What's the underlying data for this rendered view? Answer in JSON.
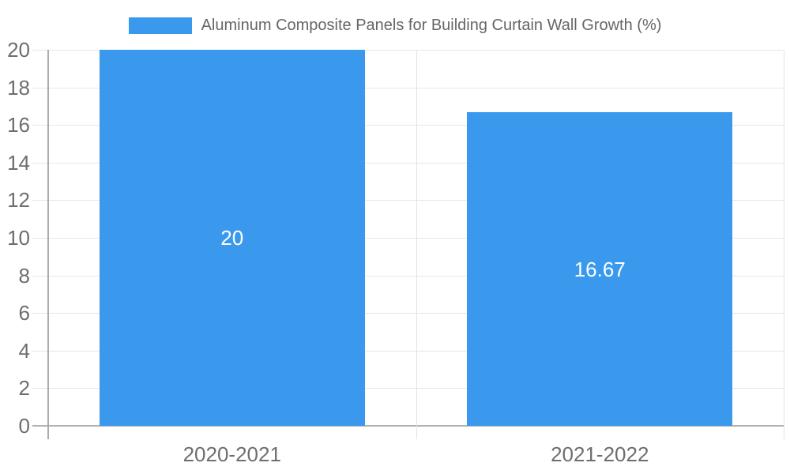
{
  "legend": {
    "label": "Aluminum Composite Panels for Building Curtain Wall Growth (%)"
  },
  "colors": {
    "bar": "#3a99ec",
    "grid": "#e6e6e6",
    "zero_line": "#b1b1b1",
    "axis_line": "#ababab",
    "boundary_line": "#e3e3e3",
    "tick_text": "#6e6e6e",
    "legend_text": "#666666",
    "value_label_text": "#ffffff",
    "background": "#ffffff"
  },
  "chart_data": {
    "type": "bar",
    "categories": [
      "2020-2021",
      "2021-2022"
    ],
    "series": [
      {
        "name": "Aluminum Composite Panels for Building Curtain Wall Growth (%)",
        "values": [
          20,
          16.67
        ]
      }
    ],
    "value_labels": [
      "20",
      "16.67"
    ],
    "title": "",
    "xlabel": "",
    "ylabel": "",
    "ylim": [
      0,
      20
    ],
    "yticks": [
      0,
      2,
      4,
      6,
      8,
      10,
      12,
      14,
      16,
      18,
      20
    ],
    "grid": true,
    "legend_position": "top",
    "value_labels_position": "center-of-bar"
  }
}
